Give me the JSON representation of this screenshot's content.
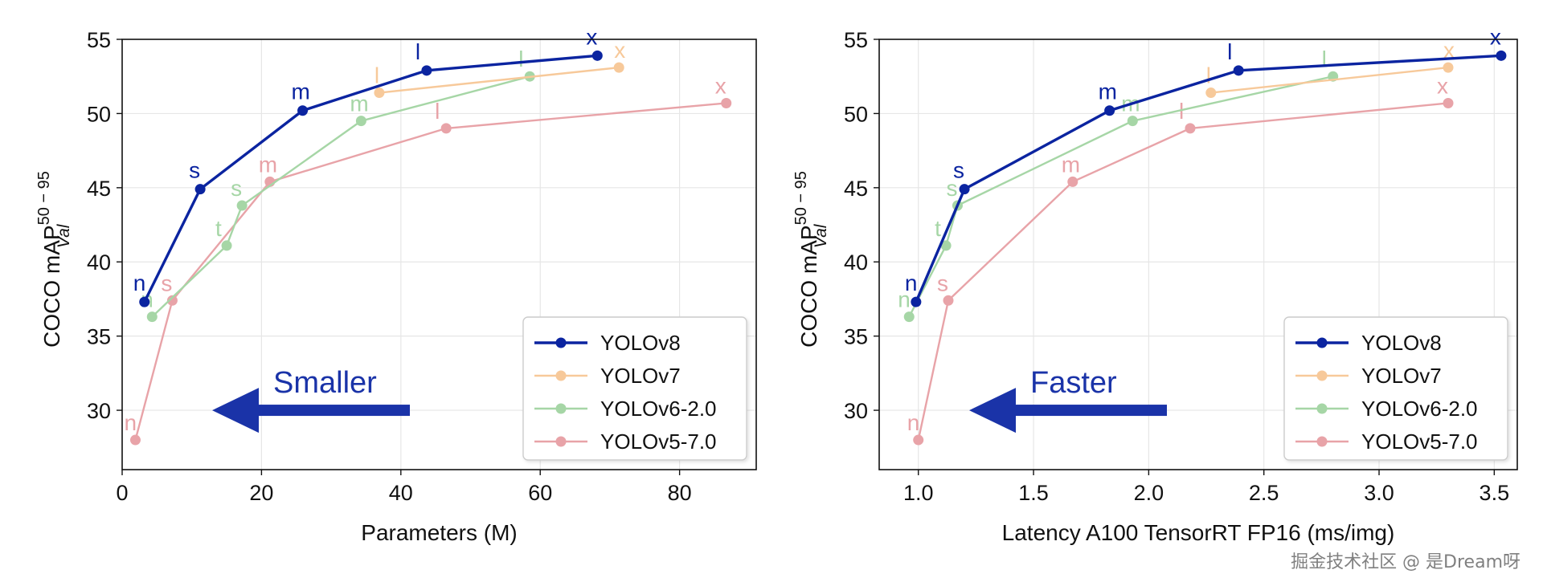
{
  "chart_data": [
    {
      "type": "line",
      "xlabel": "Parameters (M)",
      "ylabel_main": "COCO mAP",
      "ylabel_sup": "50 − 95",
      "ylabel_sub": "Val",
      "xlim": [
        0,
        91
      ],
      "ylim": [
        26,
        55
      ],
      "xticks": [
        0,
        20,
        40,
        60,
        80
      ],
      "yticks": [
        30,
        35,
        40,
        45,
        50,
        55
      ],
      "grid": true,
      "legend_position": "bottom-right",
      "hint": "Smaller",
      "series": [
        {
          "name": "YOLOv8",
          "color": "#0b24a0",
          "labels": [
            "n",
            "s",
            "m",
            "l",
            "x"
          ],
          "x": [
            3.2,
            11.2,
            25.9,
            43.7,
            68.2
          ],
          "y": [
            37.3,
            44.9,
            50.2,
            52.9,
            53.9
          ]
        },
        {
          "name": "YOLOv7",
          "color": "#f7c99a",
          "labels": [
            "l",
            "x"
          ],
          "x": [
            36.9,
            71.3
          ],
          "y": [
            51.4,
            53.1
          ]
        },
        {
          "name": "YOLOv6-2.0",
          "color": "#a6d6a6",
          "labels": [
            "n",
            "t",
            "s",
            "m",
            "l"
          ],
          "x": [
            4.3,
            15.0,
            17.2,
            34.3,
            58.5
          ],
          "y": [
            36.3,
            41.1,
            43.8,
            49.5,
            52.5
          ]
        },
        {
          "name": "YOLOv5-7.0",
          "color": "#e8a3a8",
          "labels": [
            "n",
            "s",
            "m",
            "l",
            "x"
          ],
          "x": [
            1.9,
            7.2,
            21.2,
            46.5,
            86.7
          ],
          "y": [
            28.0,
            37.4,
            45.4,
            49.0,
            50.7
          ]
        }
      ]
    },
    {
      "type": "line",
      "xlabel": "Latency A100 TensorRT FP16 (ms/img)",
      "ylabel_main": "COCO mAP",
      "ylabel_sup": "50 − 95",
      "ylabel_sub": "Val",
      "xlim": [
        0.83,
        3.6
      ],
      "ylim": [
        26,
        55
      ],
      "xticks": [
        1.0,
        1.5,
        2.0,
        2.5,
        3.0,
        3.5
      ],
      "xticklabels": [
        "1.0",
        "1.5",
        "2.0",
        "2.5",
        "3.0",
        "3.5"
      ],
      "yticks": [
        30,
        35,
        40,
        45,
        50,
        55
      ],
      "grid": true,
      "legend_position": "bottom-right",
      "hint": "Faster",
      "series": [
        {
          "name": "YOLOv8",
          "color": "#0b24a0",
          "labels": [
            "n",
            "s",
            "m",
            "l",
            "x"
          ],
          "x": [
            0.99,
            1.2,
            1.83,
            2.39,
            3.53
          ],
          "y": [
            37.3,
            44.9,
            50.2,
            52.9,
            53.9
          ]
        },
        {
          "name": "YOLOv7",
          "color": "#f7c99a",
          "labels": [
            "l",
            "x"
          ],
          "x": [
            2.27,
            3.3
          ],
          "y": [
            51.4,
            53.1
          ]
        },
        {
          "name": "YOLOv6-2.0",
          "color": "#a6d6a6",
          "labels": [
            "n",
            "t",
            "s",
            "m",
            "l"
          ],
          "x": [
            0.96,
            1.12,
            1.17,
            1.93,
            2.8
          ],
          "y": [
            36.3,
            41.1,
            43.8,
            49.5,
            52.5
          ]
        },
        {
          "name": "YOLOv5-7.0",
          "color": "#e8a3a8",
          "labels": [
            "n",
            "s",
            "m",
            "l",
            "x"
          ],
          "x": [
            1.0,
            1.13,
            1.67,
            2.18,
            3.3
          ],
          "y": [
            28.0,
            37.4,
            45.4,
            49.0,
            50.7
          ]
        }
      ]
    }
  ],
  "watermark": "掘金技术社区 @ 是Dream呀"
}
